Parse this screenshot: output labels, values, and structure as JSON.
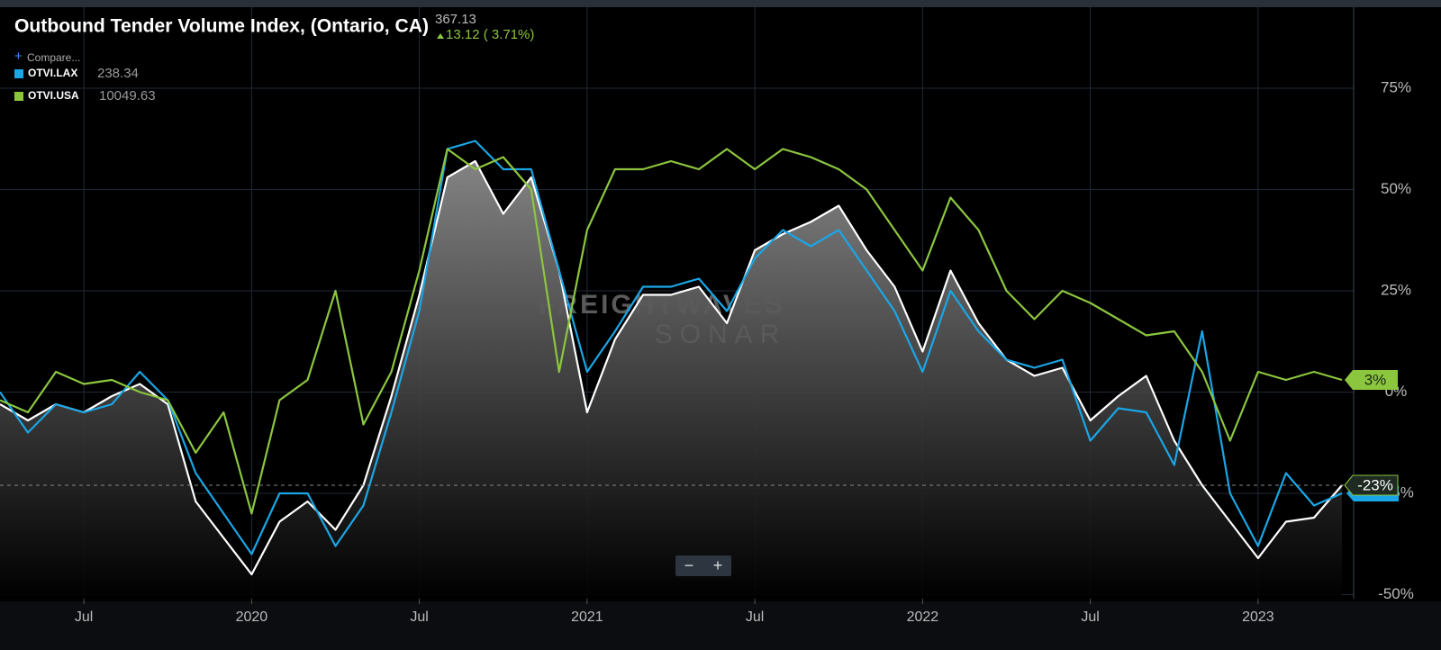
{
  "chart_data": {
    "type": "line",
    "title": "Outbound Tender Volume Index, (Ontario, CA)",
    "price": "367.13",
    "change": "13.12 ( 3.71%)",
    "compare": "Compare...",
    "legend_values": [
      "238.34",
      "10049.63"
    ],
    "watermark": [
      "FREIGHTWAVES",
      "SONAR"
    ],
    "zoom": [
      "−",
      "+"
    ],
    "x": [
      "2019-04",
      "2019-05",
      "2019-06",
      "2019-07",
      "2019-08",
      "2019-09",
      "2019-10",
      "2019-11",
      "2019-12",
      "2020-01",
      "2020-02",
      "2020-03",
      "2020-04",
      "2020-05",
      "2020-06",
      "2020-07",
      "2020-08",
      "2020-09",
      "2020-10",
      "2020-11",
      "2020-12",
      "2021-01",
      "2021-02",
      "2021-03",
      "2021-04",
      "2021-05",
      "2021-06",
      "2021-07",
      "2021-08",
      "2021-09",
      "2021-10",
      "2021-11",
      "2021-12",
      "2022-01",
      "2022-02",
      "2022-03",
      "2022-04",
      "2022-05",
      "2022-06",
      "2022-07",
      "2022-08",
      "2022-09",
      "2022-10",
      "2022-11",
      "2022-12",
      "2023-01",
      "2023-02",
      "2023-03",
      "2023-04"
    ],
    "xlim": [
      "2019-04",
      "2023-04"
    ],
    "xticks": [
      {
        "value": "2019-07",
        "label": "Jul"
      },
      {
        "value": "2020-01",
        "label": "2020"
      },
      {
        "value": "2020-07",
        "label": "Jul"
      },
      {
        "value": "2021-01",
        "label": "2021"
      },
      {
        "value": "2021-07",
        "label": "Jul"
      },
      {
        "value": "2022-01",
        "label": "2022"
      },
      {
        "value": "2022-07",
        "label": "Jul"
      },
      {
        "value": "2023-01",
        "label": "2023"
      }
    ],
    "ylim": [
      -51,
      95
    ],
    "yticks": [
      {
        "value": 75,
        "label": "75%"
      },
      {
        "value": 50,
        "label": "50%"
      },
      {
        "value": 25,
        "label": "25%"
      },
      {
        "value": 0,
        "label": "0%"
      },
      {
        "value": -25,
        "label": "-25%"
      },
      {
        "value": -50,
        "label": "-50%"
      }
    ],
    "grid": true,
    "series": [
      {
        "color": "#ffffff",
        "values": [
          -3,
          -7,
          -3,
          -5,
          -1,
          2,
          -3,
          -27,
          -36,
          -45,
          -32,
          -27,
          -34,
          -23,
          -1,
          24,
          53,
          57,
          44,
          53,
          30,
          -5,
          13,
          24,
          24,
          26,
          17,
          35,
          39,
          42,
          46,
          35,
          26,
          10,
          30,
          17,
          8,
          4,
          6,
          -7,
          -1,
          4,
          -12,
          -23,
          -32,
          -41,
          -32,
          -31,
          -23
        ]
      },
      {
        "name": "OTVI.LAX",
        "color": "#1aa6e6",
        "values": [
          0,
          -10,
          -3,
          -5,
          -3,
          5,
          -2,
          -20,
          -30,
          -40,
          -25,
          -25,
          -38,
          -28,
          -5,
          20,
          60,
          62,
          55,
          55,
          30,
          5,
          15,
          26,
          26,
          28,
          20,
          33,
          40,
          36,
          40,
          30,
          20,
          5,
          25,
          15,
          8,
          6,
          8,
          -12,
          -4,
          -5,
          -18,
          15,
          -25,
          -38,
          -20,
          -28,
          -25
        ]
      },
      {
        "name": "OTVI.USA",
        "color": "#8cc63f",
        "values": [
          -2,
          -5,
          5,
          2,
          3,
          0,
          -2,
          -15,
          -5,
          -30,
          -2,
          3,
          25,
          -8,
          5,
          30,
          60,
          55,
          58,
          50,
          5,
          40,
          55,
          55,
          57,
          55,
          60,
          55,
          60,
          58,
          55,
          50,
          40,
          30,
          48,
          40,
          25,
          18,
          25,
          22,
          18,
          14,
          15,
          5,
          -12,
          5,
          3,
          5,
          3
        ]
      }
    ],
    "badges": [
      {
        "value": 3,
        "label": "3%",
        "color": "#8cc63f"
      },
      {
        "value": -23,
        "label": "-23%",
        "color": "#1e2a22"
      }
    ],
    "reference_line": {
      "value": -23
    }
  }
}
